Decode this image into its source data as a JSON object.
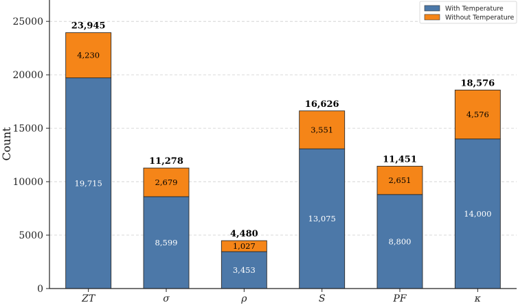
{
  "chart_data": {
    "type": "bar",
    "stacked": true,
    "title": "",
    "xlabel": "",
    "ylabel": "Count",
    "ylim": [
      0,
      27000
    ],
    "yticks": [
      0,
      5000,
      10000,
      15000,
      20000,
      25000
    ],
    "ytick_labels": [
      "0",
      "5000",
      "10000",
      "15000",
      "20000",
      "25000"
    ],
    "grid": "y-dashed",
    "categories": [
      "ZT",
      "σ",
      "ρ",
      "S",
      "PF",
      "κ"
    ],
    "series": [
      {
        "name": "With Temperature",
        "color": "#4c78a8",
        "label_color": "#ffffff",
        "values": [
          19715,
          8599,
          3453,
          13075,
          8800,
          14000
        ],
        "value_labels": [
          "19,715",
          "8,599",
          "3,453",
          "13,075",
          "8,800",
          "14,000"
        ]
      },
      {
        "name": "Without Temperature",
        "color": "#f58518",
        "label_color": "#000000",
        "values": [
          4230,
          2679,
          1027,
          3551,
          2651,
          4576
        ],
        "value_labels": [
          "4,230",
          "2,679",
          "1,027",
          "3,551",
          "2,651",
          "4,576"
        ]
      }
    ],
    "totals": [
      23945,
      11278,
      4480,
      16626,
      11451,
      18576
    ],
    "total_labels": [
      "23,945",
      "11,278",
      "4,480",
      "16,626",
      "11,451",
      "18,576"
    ],
    "legend": {
      "position": "top-right",
      "entries": [
        "With Temperature",
        "Without Temperature"
      ]
    }
  }
}
